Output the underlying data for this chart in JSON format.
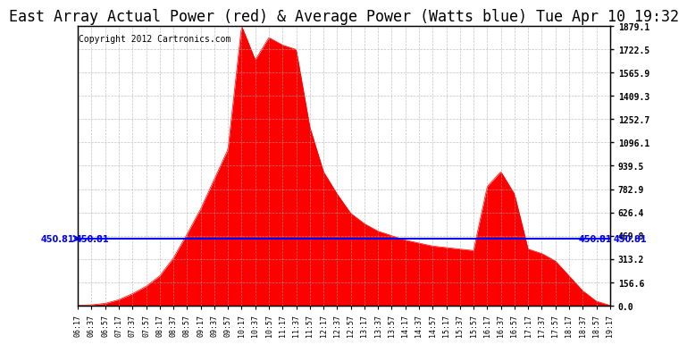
{
  "title": "East Array Actual Power (red) & Average Power (Watts blue) Tue Apr 10 19:32",
  "copyright": "Copyright 2012 Cartronics.com",
  "avg_power": 450.81,
  "ymax": 1879.1,
  "ymin": 0.0,
  "yticks": [
    0.0,
    156.6,
    313.2,
    469.8,
    626.4,
    782.9,
    939.5,
    1096.1,
    1252.7,
    1409.3,
    1565.9,
    1722.5,
    1879.1
  ],
  "ytick_labels": [
    "0.0",
    "156.6",
    "313.2",
    "469.8",
    "626.4",
    "782.9",
    "939.5",
    "1096.1",
    "1252.7",
    "1409.3",
    "1565.9",
    "1722.5",
    "1879.1"
  ],
  "background_color": "#ffffff",
  "fill_color": "#ff0000",
  "line_color": "#0000ff",
  "avg_label_color": "#0000ff",
  "title_fontsize": 12,
  "copyright_fontsize": 7,
  "tick_fontsize": 8,
  "grid_color": "#aaaaaa",
  "border_color": "#000000"
}
